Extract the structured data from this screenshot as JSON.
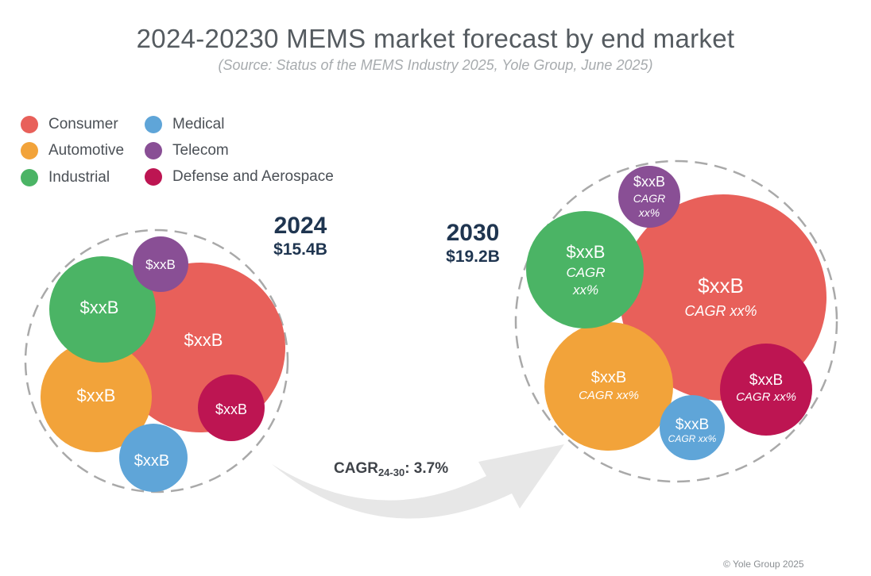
{
  "header": {
    "title": "2024-20230 MEMS market forecast by end market",
    "subtitle": "(Source: Status of the MEMS Industry 2025, Yole Group, June 2025)"
  },
  "legend": [
    {
      "label": "Consumer",
      "color": "#e8605a"
    },
    {
      "label": "Automotive",
      "color": "#f2a33a"
    },
    {
      "label": "Industrial",
      "color": "#4bb465"
    },
    {
      "label": "Medical",
      "color": "#5fa5d8"
    },
    {
      "label": "Telecom",
      "color": "#894f95"
    },
    {
      "label": "Defense and Aerospace",
      "color": "#bd1552"
    }
  ],
  "year_2024": {
    "year": "2024",
    "total": "$15.4B"
  },
  "year_2030": {
    "year": "2030",
    "total": "$19.2B"
  },
  "cagr": {
    "prefix": "CAGR",
    "subscript": "24-30",
    "suffix": ": 3.7%"
  },
  "bubbles_2024": [
    {
      "segment": "Consumer",
      "value": "$xxB"
    },
    {
      "segment": "Automotive",
      "value": "$xxB"
    },
    {
      "segment": "Industrial",
      "value": "$xxB"
    },
    {
      "segment": "Medical",
      "value": "$xxB"
    },
    {
      "segment": "Telecom",
      "value": "$xxB"
    },
    {
      "segment": "Defense and Aerospace",
      "value": "$xxB"
    }
  ],
  "bubbles_2030": [
    {
      "segment": "Consumer",
      "value": "$xxB",
      "cagr": "CAGR xx%"
    },
    {
      "segment": "Automotive",
      "value": "$xxB",
      "cagr": "CAGR xx%"
    },
    {
      "segment": "Industrial",
      "value": "$xxB",
      "cagr_line1": "CAGR",
      "cagr_line2": "xx%"
    },
    {
      "segment": "Medical",
      "value": "$xxB",
      "cagr": "CAGR xx%"
    },
    {
      "segment": "Telecom",
      "value": "$xxB",
      "cagr_line1": "CAGR",
      "cagr_line2": "xx%"
    },
    {
      "segment": "Defense and Aerospace",
      "value": "$xxB",
      "cagr": "CAGR xx%"
    }
  ],
  "footer": {
    "copyright": "© Yole Group 2025"
  }
}
